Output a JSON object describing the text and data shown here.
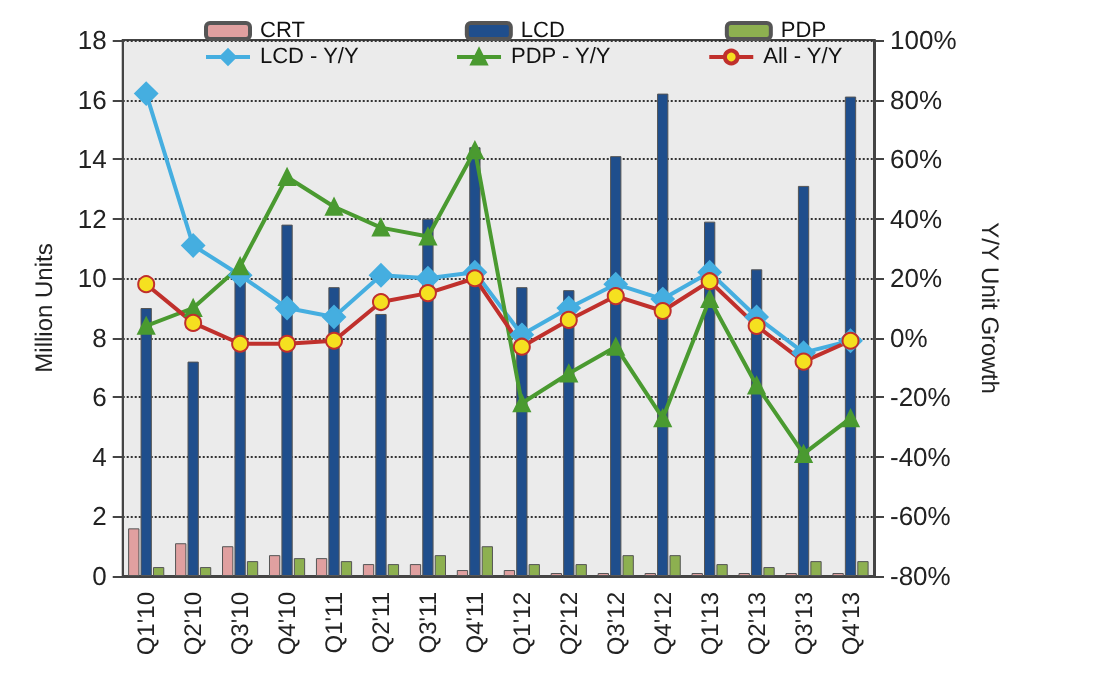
{
  "chart_data": {
    "type": "bar",
    "ylabel": "Million Units",
    "y2label": "Y/Y Unit Growth",
    "categories": [
      "Q1'10",
      "Q2'10",
      "Q3'10",
      "Q4'10",
      "Q1'11",
      "Q2'11",
      "Q3'11",
      "Q4'11",
      "Q1'12",
      "Q2'12",
      "Q3'12",
      "Q4'12",
      "Q1'13",
      "Q2'13",
      "Q3'13",
      "Q4'13"
    ],
    "series": [
      {
        "name": "CRT",
        "color": "#e0a0a0",
        "values": [
          1.6,
          1.1,
          1.0,
          0.7,
          0.6,
          0.4,
          0.4,
          0.2,
          0.2,
          0.1,
          0.1,
          0.1,
          0.1,
          0.1,
          0.1,
          0.1
        ]
      },
      {
        "name": "LCD",
        "color": "#1f4e8c",
        "values": [
          9.0,
          7.2,
          10.0,
          11.8,
          9.7,
          8.8,
          12.0,
          14.4,
          9.7,
          9.6,
          14.1,
          16.2,
          11.9,
          10.3,
          13.1,
          16.1
        ]
      },
      {
        "name": "PDP",
        "color": "#8db050",
        "values": [
          0.3,
          0.3,
          0.5,
          0.6,
          0.5,
          0.4,
          0.7,
          1.0,
          0.4,
          0.4,
          0.7,
          0.7,
          0.4,
          0.3,
          0.5,
          0.5
        ]
      },
      {
        "name": "LCD - Y/Y",
        "type": "line",
        "axis": "y2",
        "marker": "diamond",
        "color": "#45aee0",
        "values": [
          82,
          31,
          21,
          10,
          7,
          21,
          20,
          22,
          1,
          10,
          18,
          13,
          22,
          7,
          -5,
          -1
        ]
      },
      {
        "name": "PDP - Y/Y",
        "type": "line",
        "axis": "y2",
        "marker": "triangle",
        "color": "#4a9a30",
        "values": [
          4,
          10,
          24,
          54,
          44,
          37,
          34,
          63,
          -22,
          -12,
          -3,
          -27,
          13,
          -16,
          -39,
          -27
        ]
      },
      {
        "name": "All - Y/Y",
        "type": "line",
        "axis": "y2",
        "marker": "circle",
        "color": "#c0302c",
        "values": [
          18,
          5,
          -2,
          -2,
          -1,
          12,
          15,
          20,
          -3,
          6,
          14,
          9,
          19,
          4,
          -8,
          -1
        ]
      }
    ],
    "ylim": [
      0,
      18
    ],
    "yticks": [
      0,
      2,
      4,
      6,
      8,
      10,
      12,
      14,
      16,
      18
    ],
    "y2lim": [
      -80,
      100
    ],
    "y2ticks": [
      {
        "value": -80,
        "label": "-80%"
      },
      {
        "value": -60,
        "label": "-60%"
      },
      {
        "value": -40,
        "label": "-40%"
      },
      {
        "value": -20,
        "label": "-20%"
      },
      {
        "value": 0,
        "label": "0%"
      },
      {
        "value": 20,
        "label": "20%"
      },
      {
        "value": 40,
        "label": "40%"
      },
      {
        "value": 60,
        "label": "60%"
      },
      {
        "value": 80,
        "label": "80%"
      },
      {
        "value": 100,
        "label": "100%"
      }
    ],
    "grid": "y",
    "legend": "top"
  }
}
